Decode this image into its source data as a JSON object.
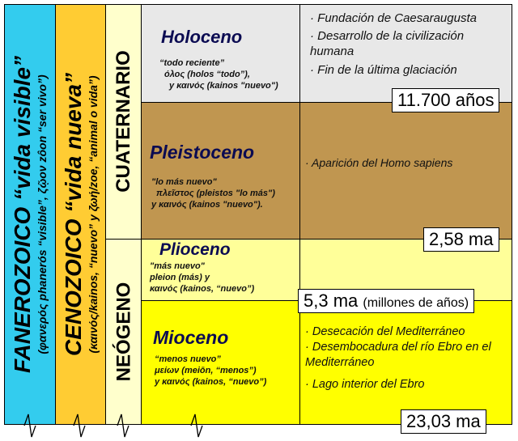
{
  "columns": {
    "fanerozoico": {
      "title": "FANEROZOICO “vida visible”",
      "subtitle": "(φανερός phanerós “visible”, ζῷον zôon “ser vivo”)",
      "color": "#33ccee"
    },
    "cenozoico": {
      "title": "CENOZOICO “vida nueva”",
      "subtitle": "(καινός/kainos, “nuevo” y ζωή/zoe, “animal o vida”)",
      "color": "#ffcc33"
    },
    "cuaternario": {
      "title": "CUATERNARIO",
      "color": "#ffffcc"
    },
    "neogeno": {
      "title": "NEÓGENO",
      "color": "#ffffcc"
    }
  },
  "epochs": {
    "holoceno": {
      "name": "Holoceno",
      "notes": [
        "“todo reciente”",
        "όλος (holos “todo”),",
        "y καινός (kainos \"nuevo\")"
      ],
      "events": [
        "· Fundación de Caesaraugusta",
        "· Desarrollo de la civilización humana",
        "· Fin de la última glaciación"
      ],
      "color": "#e8e8e8"
    },
    "pleistoceno": {
      "name": "Pleistoceno",
      "notes": [
        "\"lo más nuevo\"",
        "πλεῖστος (pleistos \"lo más\")",
        "y καινός (kainos \"nuevo\")."
      ],
      "events": [
        "· Aparición del Homo sapiens"
      ],
      "color": "#c09650"
    },
    "plioceno": {
      "name": "Plioceno",
      "notes": [
        "\"más nuevo\"",
        "pleion (más) y",
        "καινός (kainos, “nuevo”)"
      ],
      "events": [],
      "color": "#ffff99"
    },
    "mioceno": {
      "name": "Mioceno",
      "notes": [
        "“menos nuevo”",
        "μείων (meiōn, “menos”)",
        "y καινός (kainos, “nuevo”)"
      ],
      "events": [
        "· Desecación del Mediterráneo",
        "· Desembocadura del río Ebro en el Mediterráneo",
        "· Lago interior del Ebro"
      ],
      "color": "#ffff00"
    }
  },
  "ages": {
    "holoceno": "11.700 años",
    "pleistoceno": "2,58 ma",
    "plioceno": {
      "value": "5,3 ma",
      "note": "(millones de años)"
    },
    "mioceno": "23,03 ma"
  }
}
